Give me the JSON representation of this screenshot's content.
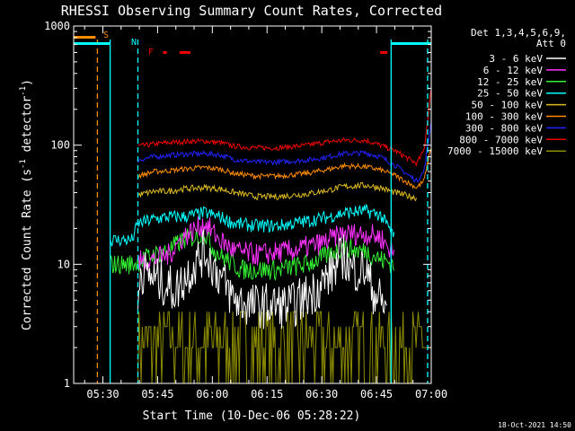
{
  "chart_data": {
    "type": "line",
    "title": "RHESSI Observing Summary Count Rates, Corrected",
    "xlabel": "Start Time (10-Dec-06 05:28:22)",
    "ylabel_main": "Corrected Count Rate (s",
    "ylabel_sup1": "-1",
    "ylabel_mid": " detector",
    "ylabel_sup2": "-1",
    "ylabel_end": ")",
    "y_scale": "log",
    "ylim": [
      1,
      1000
    ],
    "xlim_minutes": [
      -8,
      90
    ],
    "x_ticks": [
      {
        "label": "05:30",
        "t": 0
      },
      {
        "label": "05:45",
        "t": 15
      },
      {
        "label": "06:00",
        "t": 30
      },
      {
        "label": "06:15",
        "t": 45
      },
      {
        "label": "06:30",
        "t": 60
      },
      {
        "label": "06:45",
        "t": 75
      },
      {
        "label": "07:00",
        "t": 90
      }
    ],
    "y_ticks": [
      {
        "label": "1",
        "v": 1
      },
      {
        "label": "10",
        "v": 10
      },
      {
        "label": "100",
        "v": 100
      },
      {
        "label": "1000",
        "v": 1000
      }
    ],
    "legend_header": "Det 1,3,4,5,6,9,",
    "legend_att": "Att 0",
    "legend_placement": "right",
    "series": [
      {
        "name": "3 - 6 keV",
        "color": "#ffffff",
        "anchors": [
          [
            9.6,
            4
          ],
          [
            10,
            9
          ],
          [
            20,
            6
          ],
          [
            24,
            9
          ],
          [
            28,
            13
          ],
          [
            30,
            10
          ],
          [
            32,
            8
          ],
          [
            36,
            5
          ],
          [
            41,
            4.5
          ],
          [
            52,
            4.5
          ],
          [
            58,
            6
          ],
          [
            62,
            8
          ],
          [
            66,
            12
          ],
          [
            68,
            9
          ],
          [
            72,
            9
          ],
          [
            74,
            6
          ],
          [
            76,
            5
          ],
          [
            78,
            4
          ]
        ]
      },
      {
        "name": "6 - 12 keV",
        "color": "#ff33ff",
        "anchors": [
          [
            9.6,
            10.5
          ],
          [
            14,
            11
          ],
          [
            18,
            12
          ],
          [
            22,
            17
          ],
          [
            28,
            22
          ],
          [
            32,
            16
          ],
          [
            36,
            13
          ],
          [
            42,
            12
          ],
          [
            52,
            13
          ],
          [
            60,
            15
          ],
          [
            66,
            18
          ],
          [
            72,
            18
          ],
          [
            76,
            17
          ],
          [
            80,
            12
          ]
        ]
      },
      {
        "name": "12 - 25 keV",
        "color": "#33ee33",
        "anchors": [
          [
            2,
            10
          ],
          [
            8,
            10
          ],
          [
            9.6,
            10.5
          ],
          [
            14,
            12
          ],
          [
            18,
            13
          ],
          [
            22,
            16
          ],
          [
            28,
            18
          ],
          [
            30,
            14
          ],
          [
            32,
            12
          ],
          [
            38,
            9
          ],
          [
            48,
            9
          ],
          [
            56,
            10
          ],
          [
            62,
            12
          ],
          [
            66,
            14
          ],
          [
            70,
            13
          ],
          [
            72,
            13
          ],
          [
            76,
            11
          ],
          [
            80,
            10
          ]
        ]
      },
      {
        "name": "25 - 50 keV",
        "color": "#00ffff",
        "anchors": [
          [
            2,
            16
          ],
          [
            8,
            16
          ],
          [
            9.6,
            22
          ],
          [
            14,
            24
          ],
          [
            18,
            25
          ],
          [
            22,
            25
          ],
          [
            28,
            27
          ],
          [
            32,
            25
          ],
          [
            36,
            22
          ],
          [
            42,
            21
          ],
          [
            48,
            21
          ],
          [
            56,
            23
          ],
          [
            62,
            25
          ],
          [
            66,
            27
          ],
          [
            72,
            28
          ],
          [
            76,
            26
          ],
          [
            80,
            17
          ]
        ]
      },
      {
        "name": "50 - 100 keV",
        "color": "#ddbb22",
        "anchors": [
          [
            9.6,
            38
          ],
          [
            14,
            41
          ],
          [
            18,
            41
          ],
          [
            22,
            43
          ],
          [
            28,
            44
          ],
          [
            32,
            43
          ],
          [
            36,
            40
          ],
          [
            42,
            37
          ],
          [
            48,
            37
          ],
          [
            56,
            39
          ],
          [
            62,
            42
          ],
          [
            66,
            45
          ],
          [
            72,
            46
          ],
          [
            76,
            44
          ],
          [
            80,
            40
          ],
          [
            86,
            36
          ]
        ]
      },
      {
        "name": "100 - 300 keV",
        "color": "#ff8c00",
        "anchors": [
          [
            9.6,
            55
          ],
          [
            14,
            60
          ],
          [
            18,
            61
          ],
          [
            22,
            63
          ],
          [
            28,
            65
          ],
          [
            32,
            63
          ],
          [
            36,
            58
          ],
          [
            42,
            55
          ],
          [
            48,
            55
          ],
          [
            56,
            58
          ],
          [
            62,
            63
          ],
          [
            66,
            67
          ],
          [
            72,
            66
          ],
          [
            76,
            62
          ],
          [
            80,
            56
          ],
          [
            86,
            44
          ],
          [
            88,
            50
          ],
          [
            90,
            100
          ]
        ]
      },
      {
        "name": "300 - 800 keV",
        "color": "#2222ff",
        "anchors": [
          [
            9.6,
            75
          ],
          [
            14,
            80
          ],
          [
            18,
            82
          ],
          [
            22,
            84
          ],
          [
            28,
            85
          ],
          [
            32,
            83
          ],
          [
            36,
            76
          ],
          [
            42,
            72
          ],
          [
            48,
            72
          ],
          [
            56,
            75
          ],
          [
            62,
            80
          ],
          [
            66,
            85
          ],
          [
            72,
            86
          ],
          [
            76,
            80
          ],
          [
            80,
            68
          ],
          [
            86,
            50
          ],
          [
            88,
            60
          ],
          [
            90,
            160
          ]
        ]
      },
      {
        "name": "800 - 7000 keV",
        "color": "#ee0000",
        "anchors": [
          [
            9.6,
            98
          ],
          [
            14,
            102
          ],
          [
            18,
            105
          ],
          [
            22,
            107
          ],
          [
            28,
            108
          ],
          [
            32,
            105
          ],
          [
            36,
            98
          ],
          [
            42,
            95
          ],
          [
            48,
            95
          ],
          [
            56,
            100
          ],
          [
            62,
            107
          ],
          [
            66,
            110
          ],
          [
            72,
            110
          ],
          [
            76,
            100
          ],
          [
            80,
            90
          ],
          [
            86,
            70
          ],
          [
            88,
            90
          ],
          [
            90,
            300
          ]
        ]
      },
      {
        "name": "7000 - 15000 keV",
        "color": "#8b8b00",
        "anchors": []
      }
    ],
    "flag_labels": {
      "saa": "S",
      "night": "N",
      "flare": "F"
    },
    "flag_colors": {
      "saa": "#ff8c00",
      "night": "#00ffff",
      "flare": "#ee0000"
    },
    "flag_intervals": {
      "saa": [
        [
          -8,
          -2
        ]
      ],
      "night": [
        [
          -8,
          2
        ],
        [
          79,
          90
        ]
      ],
      "flare": [
        [
          16.5,
          17.5
        ],
        [
          21,
          24
        ],
        [
          76,
          78
        ]
      ]
    },
    "vlines": [
      {
        "t": 2,
        "color": "#00ffff",
        "style": "solid"
      },
      {
        "t": 79,
        "color": "#00ffff",
        "style": "solid"
      },
      {
        "t": 9.6,
        "color": "#00ffff",
        "style": "dashed"
      },
      {
        "t": 89,
        "color": "#00ffff",
        "style": "dashed"
      },
      {
        "t": -1.5,
        "color": "#ff8c00",
        "style": "dashed"
      }
    ]
  },
  "footer": {
    "timestamp": "18-Oct-2021 14:50"
  },
  "colors": {
    "background": "#000000",
    "axis": "#ffffff"
  }
}
